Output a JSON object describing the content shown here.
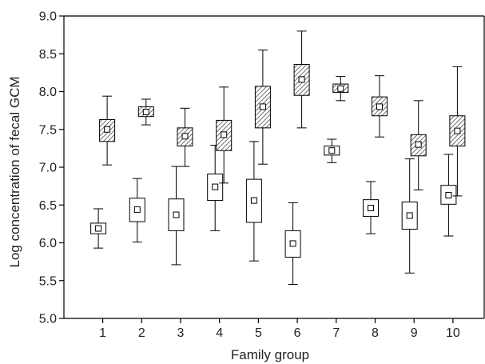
{
  "chart_data": {
    "type": "box",
    "xlabel": "Family group",
    "ylabel": "Log concentration of fecal GCM",
    "ylim": [
      5.0,
      9.0
    ],
    "yticks": [
      "5.0",
      "5.5",
      "6.0",
      "6.5",
      "7.0",
      "7.5",
      "8.0",
      "8.5",
      "9.0"
    ],
    "categories": [
      "1",
      "2",
      "3",
      "4",
      "5",
      "6",
      "7",
      "8",
      "9",
      "10"
    ],
    "grid": false,
    "legend": "none",
    "series": [
      {
        "fill": "#ffffff",
        "pattern": "none",
        "boxes": [
          {
            "min": 5.93,
            "q1": 6.12,
            "median": 6.19,
            "q3": 6.26,
            "max": 6.45
          },
          {
            "min": 6.01,
            "q1": 6.28,
            "median": 6.44,
            "q3": 6.59,
            "max": 6.85
          },
          {
            "min": 5.71,
            "q1": 6.16,
            "median": 6.37,
            "q3": 6.58,
            "max": 7.01
          },
          {
            "min": 6.16,
            "q1": 6.56,
            "median": 6.74,
            "q3": 6.91,
            "max": 7.29
          },
          {
            "min": 5.76,
            "q1": 6.27,
            "median": 6.56,
            "q3": 6.84,
            "max": 7.34
          },
          {
            "min": 5.45,
            "q1": 5.81,
            "median": 5.99,
            "q3": 6.16,
            "max": 6.53
          },
          {
            "min": 7.06,
            "q1": 7.16,
            "median": 7.22,
            "q3": 7.28,
            "max": 7.37
          },
          {
            "min": 6.12,
            "q1": 6.35,
            "median": 6.46,
            "q3": 6.57,
            "max": 6.81
          },
          {
            "min": 5.6,
            "q1": 6.18,
            "median": 6.36,
            "q3": 6.54,
            "max": 7.11
          },
          {
            "min": 6.09,
            "q1": 6.51,
            "median": 6.63,
            "q3": 6.76,
            "max": 7.17
          }
        ]
      },
      {
        "fill": "#d0d0d0",
        "pattern": "hatched",
        "boxes": [
          {
            "min": 7.03,
            "q1": 7.34,
            "median": 7.5,
            "q3": 7.63,
            "max": 7.94
          },
          {
            "min": 7.56,
            "q1": 7.67,
            "median": 7.73,
            "q3": 7.8,
            "max": 7.9
          },
          {
            "min": 7.01,
            "q1": 7.28,
            "median": 7.41,
            "q3": 7.52,
            "max": 7.78
          },
          {
            "min": 6.79,
            "q1": 7.22,
            "median": 7.43,
            "q3": 7.62,
            "max": 8.06
          },
          {
            "min": 7.04,
            "q1": 7.52,
            "median": 7.8,
            "q3": 8.07,
            "max": 8.55
          },
          {
            "min": 7.52,
            "q1": 7.95,
            "median": 8.16,
            "q3": 8.36,
            "max": 8.8
          },
          {
            "min": 7.88,
            "q1": 7.99,
            "median": 8.04,
            "q3": 8.1,
            "max": 8.2
          },
          {
            "min": 7.4,
            "q1": 7.68,
            "median": 7.8,
            "q3": 7.93,
            "max": 8.21
          },
          {
            "min": 6.7,
            "q1": 7.15,
            "median": 7.3,
            "q3": 7.43,
            "max": 7.88
          },
          {
            "min": 6.62,
            "q1": 7.28,
            "median": 7.48,
            "q3": 7.68,
            "max": 8.33
          }
        ]
      }
    ]
  }
}
